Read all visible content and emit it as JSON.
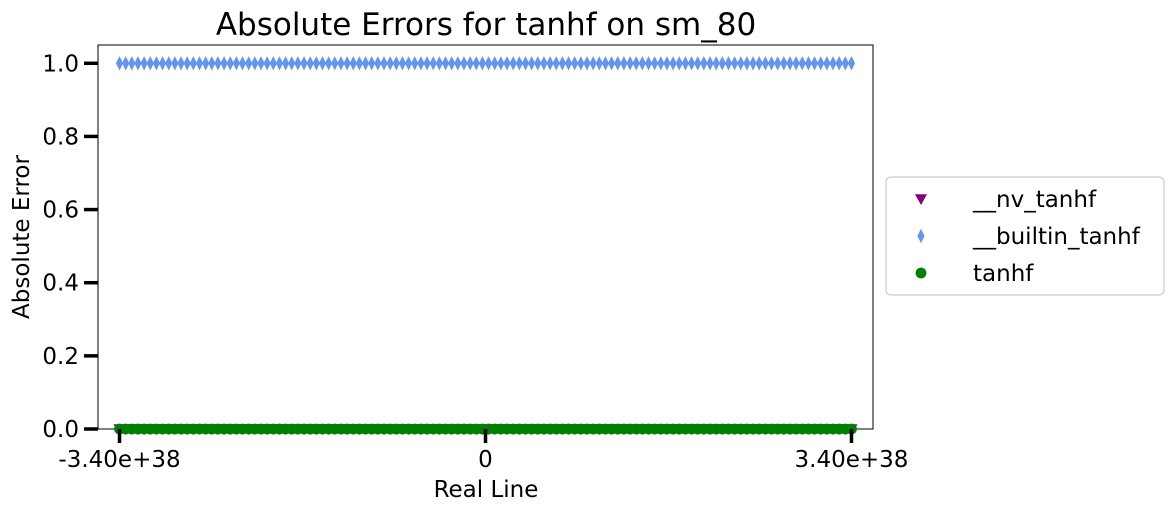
{
  "chart_data": {
    "type": "scatter",
    "title": "Absolute Errors for tanhf on sm_80",
    "xlabel": "Real Line",
    "ylabel": "Absolute Error",
    "xlim": [
      -3.6e+38,
      3.6e+38
    ],
    "ylim": [
      0.0,
      1.05
    ],
    "x_ticks": [
      {
        "value": -3.4e+38,
        "label": "-3.40e+38"
      },
      {
        "value": 0,
        "label": "0"
      },
      {
        "value": 3.4e+38,
        "label": "3.40e+38"
      }
    ],
    "y_ticks": [
      {
        "value": 0.0,
        "label": "0.0"
      },
      {
        "value": 0.2,
        "label": "0.2"
      },
      {
        "value": 0.4,
        "label": "0.4"
      },
      {
        "value": 0.6,
        "label": "0.6"
      },
      {
        "value": 0.8,
        "label": "0.8"
      },
      {
        "value": 1.0,
        "label": "1.0"
      }
    ],
    "grid": false,
    "legend_position": "right-outside",
    "series": [
      {
        "name": "__nv_tanhf",
        "marker": "triangle-down",
        "color": "#800080",
        "x_range": [
          -3.4e+38,
          3.4e+38
        ],
        "y": 0.0
      },
      {
        "name": "__builtin_tanhf",
        "marker": "thin-diamond",
        "color": "#6495ED",
        "x_range": [
          -3.4e+38,
          3.4e+38
        ],
        "y": 1.0
      },
      {
        "name": "tanhf",
        "marker": "circle",
        "color": "#008000",
        "x_range": [
          -3.4e+38,
          3.4e+38
        ],
        "y": 0.0
      }
    ]
  }
}
